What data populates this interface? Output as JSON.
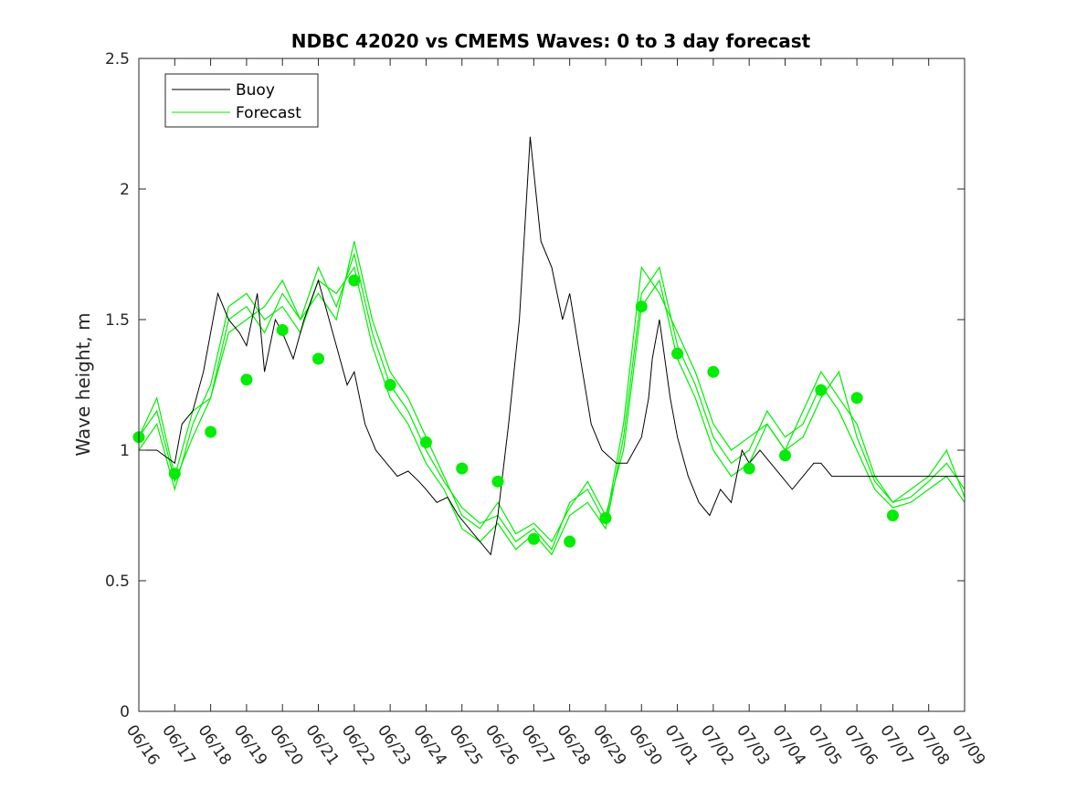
{
  "chart_data": {
    "type": "line",
    "title": "NDBC 42020 vs CMEMS Waves: 0 to 3 day forecast",
    "xlabel": "",
    "ylabel": "Wave height, m",
    "ylim": [
      0,
      2.5
    ],
    "yticks": [
      "0",
      "0.5",
      "1",
      "1.5",
      "2",
      "2.5"
    ],
    "xlim_days": [
      0,
      23
    ],
    "xticks": [
      "06/16",
      "06/17",
      "06/18",
      "06/19",
      "06/20",
      "06/21",
      "06/22",
      "06/23",
      "06/24",
      "06/25",
      "06/26",
      "06/27",
      "06/28",
      "06/29",
      "06/30",
      "07/01",
      "07/02",
      "07/03",
      "07/04",
      "07/05",
      "07/06",
      "07/07",
      "07/08",
      "07/09"
    ],
    "grid": false,
    "legend_position": "top-left",
    "legend": [
      "Buoy",
      "Forecast"
    ],
    "colors": {
      "buoy": "#000000",
      "forecast": "#00ee00"
    },
    "buoy": {
      "name": "Buoy",
      "x": [
        0,
        0.5,
        1,
        1.2,
        1.5,
        1.8,
        2.2,
        2.5,
        2.8,
        3,
        3.3,
        3.5,
        3.8,
        4,
        4.3,
        4.6,
        5,
        5.2,
        5.5,
        5.8,
        6,
        6.3,
        6.6,
        6.9,
        7.2,
        7.5,
        7.8,
        8,
        8.3,
        8.6,
        8.9,
        9.2,
        9.5,
        9.8,
        10,
        10.3,
        10.6,
        10.9,
        11.2,
        11.5,
        11.8,
        12,
        12.3,
        12.6,
        12.9,
        13.3,
        13.6,
        14,
        14.2,
        14.3,
        14.5,
        14.8,
        15,
        15.3,
        15.6,
        15.9,
        16.2,
        16.5,
        16.8,
        17,
        17.3,
        17.6,
        17.9,
        18.2,
        18.5,
        18.8,
        19,
        19.3,
        19.6,
        19.9,
        20.2,
        20.5,
        20.8,
        21,
        21.3,
        21.6,
        21.9,
        22.2,
        22.5,
        22.8,
        23
      ],
      "y": [
        1,
        1,
        0.95,
        1.1,
        1.15,
        1.3,
        1.6,
        1.5,
        1.45,
        1.4,
        1.6,
        1.3,
        1.5,
        1.45,
        1.35,
        1.5,
        1.65,
        1.55,
        1.4,
        1.25,
        1.3,
        1.1,
        1.0,
        0.95,
        0.9,
        0.92,
        0.88,
        0.85,
        0.8,
        0.82,
        0.75,
        0.7,
        0.65,
        0.6,
        0.75,
        1.1,
        1.5,
        2.2,
        1.8,
        1.7,
        1.5,
        1.6,
        1.35,
        1.1,
        1.0,
        0.95,
        0.95,
        1.05,
        1.2,
        1.35,
        1.5,
        1.2,
        1.05,
        0.9,
        0.8,
        0.75,
        0.85,
        0.8,
        1.0,
        0.95,
        1.0,
        0.95,
        0.9,
        0.85,
        0.9,
        0.95,
        0.95,
        0.9,
        0.9,
        0.9,
        0.9,
        0.9,
        0.9,
        0.9,
        0.9,
        0.9,
        0.9,
        0.9,
        0.9,
        0.9,
        0.9
      ],
      "note": ""
    },
    "forecast_days": [
      {
        "name": "Forecast",
        "x": [
          0,
          0.5,
          1,
          1.5,
          2,
          2.5,
          3,
          3.5,
          4,
          4.5,
          5,
          5.5,
          6,
          6.5,
          7,
          7.5,
          8,
          8.5,
          9,
          9.5,
          10,
          10.5,
          11,
          11.5,
          12,
          12.5,
          13,
          13.5,
          14,
          14.5,
          15,
          15.5,
          16,
          16.5,
          17,
          17.5,
          18,
          18.5,
          19,
          19.5,
          20,
          20.5,
          21,
          21.5,
          22,
          22.5,
          23
        ],
        "y": [
          1.05,
          1.2,
          0.9,
          1.15,
          1.2,
          1.5,
          1.55,
          1.45,
          1.6,
          1.5,
          1.7,
          1.55,
          1.75,
          1.45,
          1.25,
          1.15,
          1.0,
          0.88,
          0.78,
          0.72,
          0.75,
          0.65,
          0.7,
          0.62,
          0.8,
          0.85,
          0.72,
          1.1,
          1.7,
          1.6,
          1.45,
          1.3,
          1.1,
          1.0,
          1.05,
          1.1,
          1.0,
          1.15,
          1.3,
          1.2,
          1.1,
          0.9,
          0.8,
          0.82,
          0.88,
          0.95,
          0.85
        ]
      },
      {
        "name": "Forecast",
        "x": [
          0,
          0.5,
          1,
          1.5,
          2,
          2.5,
          3,
          3.5,
          4,
          4.5,
          5,
          5.5,
          6,
          6.5,
          7,
          7.5,
          8,
          8.5,
          9,
          9.5,
          10,
          10.5,
          11,
          11.5,
          12,
          12.5,
          13,
          13.5,
          14,
          14.5,
          15,
          15.5,
          16,
          16.5,
          17,
          17.5,
          18,
          18.5,
          19,
          19.5,
          20,
          20.5,
          21,
          21.5,
          22,
          22.5,
          23
        ],
        "y": [
          1.0,
          1.1,
          0.85,
          1.1,
          1.25,
          1.55,
          1.6,
          1.5,
          1.55,
          1.45,
          1.65,
          1.6,
          1.7,
          1.4,
          1.2,
          1.1,
          0.95,
          0.85,
          0.7,
          0.65,
          0.72,
          0.62,
          0.68,
          0.6,
          0.75,
          0.8,
          0.7,
          1.05,
          1.6,
          1.7,
          1.4,
          1.25,
          1.05,
          0.95,
          1.0,
          1.15,
          1.05,
          1.1,
          1.25,
          1.15,
          1.0,
          0.85,
          0.78,
          0.8,
          0.85,
          0.9,
          0.8
        ]
      },
      {
        "name": "Forecast",
        "x": [
          0,
          0.5,
          1,
          1.5,
          2,
          2.5,
          3,
          3.5,
          4,
          4.5,
          5,
          5.5,
          6,
          6.5,
          7,
          7.5,
          8,
          8.5,
          9,
          9.5,
          10,
          10.5,
          11,
          11.5,
          12,
          12.5,
          13,
          13.5,
          14,
          14.5,
          15,
          15.5,
          16,
          16.5,
          17,
          17.5,
          18,
          18.5,
          19,
          19.5,
          20,
          20.5,
          21,
          21.5,
          22,
          22.5,
          23
        ],
        "y": [
          1.05,
          1.15,
          0.88,
          1.05,
          1.2,
          1.45,
          1.5,
          1.55,
          1.65,
          1.5,
          1.6,
          1.5,
          1.8,
          1.5,
          1.3,
          1.2,
          1.05,
          0.9,
          0.75,
          0.7,
          0.8,
          0.68,
          0.72,
          0.65,
          0.78,
          0.88,
          0.75,
          1.0,
          1.55,
          1.65,
          1.35,
          1.2,
          1.0,
          0.9,
          0.95,
          1.1,
          1.0,
          1.05,
          1.2,
          1.3,
          1.05,
          0.88,
          0.8,
          0.85,
          0.9,
          1.0,
          0.82
        ]
      }
    ],
    "daily_markers": {
      "name": "Forecast",
      "x": [
        0,
        1,
        2,
        3,
        4,
        5,
        6,
        7,
        8,
        9,
        10,
        11,
        12,
        13,
        14,
        15,
        16,
        17,
        18,
        19,
        20,
        21
      ],
      "y": [
        1.05,
        0.91,
        1.07,
        1.27,
        1.46,
        1.35,
        1.65,
        1.25,
        1.03,
        0.93,
        0.88,
        0.66,
        0.65,
        0.74,
        1.55,
        1.37,
        1.3,
        0.93,
        0.98,
        1.23,
        1.2,
        0.75
      ]
    }
  }
}
